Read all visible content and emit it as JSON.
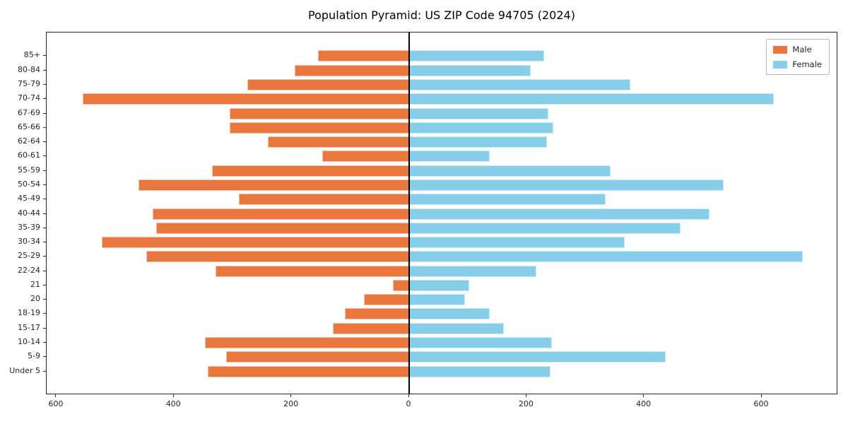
{
  "title": "Population Pyramid: US ZIP Code 94705 (2024)",
  "legend": {
    "male_label": "Male",
    "female_label": "Female"
  },
  "colors": {
    "male": "#e8763d",
    "female": "#87ceeb",
    "axis": "#262626",
    "zero_line": "#000000"
  },
  "chart_data": {
    "type": "bar",
    "variant": "population-pyramid",
    "title": "Population Pyramid: US ZIP Code 94705 (2024)",
    "categories": [
      "85+",
      "80-84",
      "75-79",
      "70-74",
      "67-69",
      "65-66",
      "62-64",
      "60-61",
      "55-59",
      "50-54",
      "45-49",
      "40-44",
      "35-39",
      "30-34",
      "25-29",
      "22-24",
      "21",
      "20",
      "18-19",
      "15-17",
      "10-14",
      "5-9",
      "Under 5"
    ],
    "series": [
      {
        "name": "Male",
        "side": "left",
        "color": "#e8763d",
        "values": [
          155,
          195,
          275,
          555,
          305,
          305,
          240,
          148,
          335,
          460,
          290,
          437,
          430,
          523,
          447,
          330,
          28,
          77,
          110,
          130,
          348,
          312,
          343
        ]
      },
      {
        "name": "Female",
        "side": "right",
        "color": "#87ceeb",
        "values": [
          230,
          207,
          376,
          620,
          237,
          245,
          234,
          137,
          343,
          535,
          334,
          511,
          462,
          367,
          670,
          217,
          102,
          95,
          137,
          161,
          243,
          436,
          241
        ]
      }
    ],
    "x_tick_values": [
      -600,
      -400,
      -200,
      0,
      200,
      400,
      600
    ],
    "x_tick_labels": [
      "600",
      "400",
      "200",
      "0",
      "200",
      "400",
      "600"
    ],
    "xlim": [
      -617,
      730
    ],
    "legend_position": "upper right",
    "grid": false
  }
}
